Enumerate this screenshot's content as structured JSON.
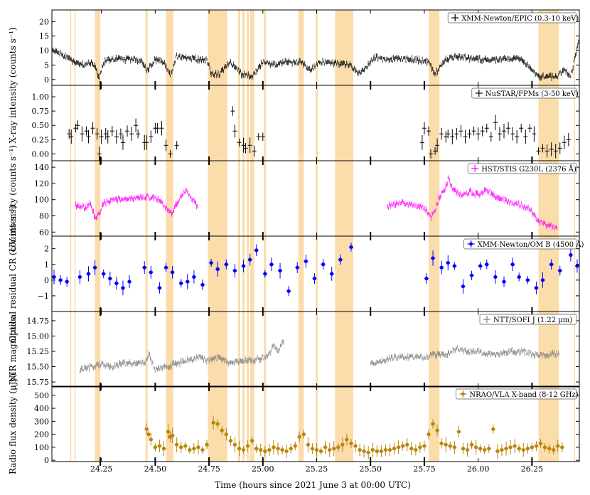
{
  "chart_data": {
    "type": "scatter",
    "xlabel": "Time (hours since 2021 June 3 at 00:00 UTC)",
    "xlim": [
      24.02,
      26.47
    ],
    "x_ticks": [
      "24.25",
      "24.50",
      "24.75",
      "25.00",
      "25.25",
      "25.50",
      "25.75",
      "26.00",
      "26.25"
    ],
    "x_tick_values": [
      24.25,
      24.5,
      24.75,
      25.0,
      25.25,
      25.5,
      25.75,
      26.0,
      26.25
    ],
    "shared_ylabel": "X-ray intensity (counts s⁻¹)",
    "bands": [
      [
        24.105,
        24.11
      ],
      [
        24.125,
        24.13
      ],
      [
        24.22,
        24.245
      ],
      [
        24.455,
        24.465
      ],
      [
        24.55,
        24.585
      ],
      [
        24.745,
        24.835
      ],
      [
        24.885,
        24.895
      ],
      [
        24.905,
        24.915
      ],
      [
        24.925,
        24.935
      ],
      [
        24.94,
        24.96
      ],
      [
        25.005,
        25.015
      ],
      [
        25.165,
        25.19
      ],
      [
        25.245,
        25.255
      ],
      [
        25.335,
        25.42
      ],
      [
        25.77,
        25.82
      ],
      [
        26.28,
        26.375
      ],
      [
        26.445,
        26.45
      ]
    ],
    "event_marks": [
      24.245,
      24.5,
      24.75,
      25.0,
      25.5,
      25.75,
      26.25
    ],
    "band_color": "#fbdcab",
    "panels": [
      {
        "id": "xmm-epic",
        "legend": "XMM-Newton/EPIC (0.3-10 keV)",
        "color": "#000000",
        "style": "dense",
        "ylim": [
          -2,
          24
        ],
        "y_ticks": [
          "0",
          "5",
          "10",
          "15",
          "20"
        ],
        "y_tick_values": [
          0,
          5,
          10,
          15,
          20
        ],
        "x": [
          24.02,
          24.06,
          24.1,
          24.12,
          24.14,
          24.16,
          24.2,
          24.22,
          24.24,
          24.26,
          24.3,
          24.4,
          24.44,
          24.46,
          24.5,
          24.54,
          24.57,
          24.6,
          24.7,
          24.74,
          24.76,
          24.8,
          24.85,
          24.9,
          24.95,
          25.0,
          25.05,
          25.1,
          25.18,
          25.22,
          25.26,
          25.3,
          25.4,
          25.45,
          25.5,
          25.52,
          25.55,
          25.6,
          25.7,
          25.77,
          25.8,
          25.85,
          25.9,
          26.0,
          26.1,
          26.2,
          26.28,
          26.32,
          26.37,
          26.4,
          26.43,
          26.47
        ],
        "y": [
          10,
          9,
          7,
          6,
          6,
          5,
          6,
          4,
          1,
          6,
          7,
          7,
          6,
          3,
          7,
          6,
          1,
          8,
          7,
          7,
          2,
          2,
          6,
          2,
          1,
          6,
          5,
          6,
          6,
          3,
          6,
          6,
          5,
          2,
          6,
          8,
          7,
          7,
          7,
          6,
          2,
          7,
          8,
          7,
          7,
          7,
          1,
          1,
          1,
          4,
          1,
          14
        ]
      },
      {
        "id": "nustar",
        "legend": "NuSTAR/FPMs (3-50 keV)",
        "color": "#000000",
        "style": "binned",
        "ylim": [
          -0.12,
          1.2
        ],
        "y_ticks": [
          "0.00",
          "0.25",
          "0.50",
          "0.75",
          "1.00"
        ],
        "y_tick_values": [
          0,
          0.25,
          0.5,
          0.75,
          1.0
        ],
        "x": [
          24.1,
          24.11,
          24.13,
          24.14,
          24.16,
          24.18,
          24.19,
          24.21,
          24.23,
          24.24,
          24.25,
          24.27,
          24.28,
          24.3,
          24.32,
          24.34,
          24.35,
          24.37,
          24.39,
          24.41,
          24.42,
          24.45,
          24.46,
          24.48,
          24.5,
          24.51,
          24.53,
          24.55,
          24.57,
          24.6,
          24.86,
          24.87,
          24.89,
          24.91,
          24.92,
          24.94,
          24.96,
          24.98,
          25.0,
          25.74,
          25.75,
          25.77,
          25.78,
          25.8,
          25.81,
          25.83,
          25.85,
          25.86,
          25.88,
          25.9,
          25.92,
          25.94,
          25.96,
          25.98,
          26.0,
          26.02,
          26.04,
          26.06,
          26.08,
          26.1,
          26.12,
          26.14,
          26.16,
          26.18,
          26.2,
          26.22,
          26.24,
          26.26,
          26.28,
          26.3,
          26.32,
          26.34,
          26.36,
          26.38,
          26.4,
          26.42
        ],
        "y": [
          0.35,
          0.3,
          0.45,
          0.5,
          0.35,
          0.4,
          0.3,
          0.45,
          0.35,
          0.0,
          0.3,
          0.35,
          0.3,
          0.4,
          0.3,
          0.35,
          0.2,
          0.4,
          0.35,
          0.5,
          0.35,
          0.2,
          0.2,
          0.3,
          0.45,
          0.45,
          0.45,
          0.15,
          0.0,
          0.15,
          0.75,
          0.4,
          0.2,
          0.15,
          0.1,
          0.15,
          0.05,
          0.3,
          0.3,
          0.2,
          0.45,
          0.4,
          0.0,
          0.05,
          0.15,
          0.35,
          0.3,
          0.35,
          0.3,
          0.35,
          0.4,
          0.3,
          0.35,
          0.4,
          0.35,
          0.4,
          0.45,
          0.3,
          0.55,
          0.35,
          0.4,
          0.45,
          0.35,
          0.3,
          0.45,
          0.3,
          0.45,
          0.35,
          0.05,
          0.1,
          0.05,
          0.08,
          0.05,
          0.1,
          0.2,
          0.25
        ]
      },
      {
        "id": "hst",
        "legend": "HST/STIS G230L (2376 Å)",
        "color": "#ff00ff",
        "style": "dense",
        "ylim": [
          55,
          148
        ],
        "y_ticks": [
          "60",
          "80",
          "100",
          "120",
          "140"
        ],
        "y_tick_values": [
          60,
          80,
          100,
          120,
          140
        ],
        "ylabel": "UV intensity (counts s⁻¹)",
        "x": [
          24.13,
          24.17,
          24.2,
          24.22,
          24.23,
          24.26,
          24.3,
          24.35,
          24.4,
          24.45,
          24.48,
          24.52,
          24.55,
          24.56,
          24.58,
          24.6,
          24.62,
          24.64,
          24.67,
          24.7,
          25.58,
          25.62,
          25.65,
          25.7,
          25.75,
          25.78,
          25.8,
          25.82,
          25.84,
          25.86,
          25.88,
          25.92,
          25.96,
          26.0,
          26.04,
          26.08,
          26.12,
          26.16,
          26.2,
          26.24,
          26.28,
          26.31,
          26.34,
          26.37
        ],
        "y": [
          93,
          90,
          95,
          80,
          78,
          95,
          100,
          101,
          102,
          104,
          103,
          100,
          90,
          88,
          84,
          96,
          104,
          112,
          100,
          92,
          92,
          95,
          97,
          93,
          90,
          78,
          87,
          103,
          110,
          125,
          115,
          105,
          110,
          106,
          112,
          104,
          100,
          95,
          93,
          88,
          72,
          70,
          68,
          64
        ]
      },
      {
        "id": "xmm-om",
        "legend": "XMM-Newton/OM B (4500 Å)",
        "color": "#0000ff",
        "style": "binned",
        "ylim": [
          -2.0,
          2.8
        ],
        "y_ticks": [
          "−1",
          "0",
          "1",
          "2"
        ],
        "y_tick_values": [
          -1,
          0,
          1,
          2
        ],
        "ylabel": "Optical residual CR (counts s⁻¹)",
        "x": [
          24.03,
          24.06,
          24.09,
          24.15,
          24.19,
          24.22,
          24.26,
          24.29,
          24.32,
          24.35,
          24.38,
          24.45,
          24.48,
          24.52,
          24.55,
          24.58,
          24.62,
          24.65,
          24.68,
          24.72,
          24.76,
          24.79,
          24.83,
          24.87,
          24.91,
          24.94,
          24.97,
          25.01,
          25.04,
          25.08,
          25.12,
          25.16,
          25.2,
          25.24,
          25.28,
          25.32,
          25.36,
          25.41,
          25.76,
          25.79,
          25.83,
          25.86,
          25.89,
          25.93,
          25.97,
          26.01,
          26.04,
          26.08,
          26.12,
          26.16,
          26.19,
          26.23,
          26.27,
          26.3,
          26.34,
          26.38,
          26.43,
          26.46
        ],
        "y": [
          0.2,
          0.0,
          -0.1,
          0.2,
          0.4,
          0.8,
          0.4,
          0.1,
          -0.2,
          -0.5,
          -0.1,
          0.8,
          0.5,
          -0.5,
          0.8,
          0.5,
          -0.2,
          -0.1,
          0.2,
          -0.3,
          1.1,
          0.7,
          1.0,
          0.6,
          0.9,
          1.3,
          1.9,
          0.4,
          1.0,
          0.6,
          -0.7,
          0.8,
          1.2,
          0.1,
          1.0,
          0.4,
          1.3,
          2.1,
          0.1,
          1.4,
          0.8,
          1.1,
          0.9,
          -0.4,
          0.3,
          0.9,
          1.0,
          0.2,
          -0.1,
          1.0,
          0.2,
          0.0,
          -0.5,
          0.0,
          1.0,
          0.6,
          1.6,
          0.9
        ]
      },
      {
        "id": "ntt",
        "legend": "NTT/SOFI J (1.22 μm)",
        "color": "#808080",
        "style": "dense",
        "ylim": [
          15.83,
          14.6
        ],
        "y_ticks": [
          "14.75",
          "15.00",
          "15.25",
          "15.50",
          "15.75"
        ],
        "y_tick_values": [
          14.75,
          15.0,
          15.25,
          15.5,
          15.75
        ],
        "ylabel": "NIR magnitude",
        "x": [
          24.15,
          24.2,
          24.25,
          24.3,
          24.35,
          24.4,
          24.45,
          24.47,
          24.5,
          24.55,
          24.6,
          24.65,
          24.7,
          24.75,
          24.8,
          24.85,
          24.9,
          24.95,
          25.0,
          25.03,
          25.05,
          25.07,
          25.1,
          25.5,
          25.55,
          25.6,
          25.7,
          25.75,
          25.8,
          25.85,
          25.9,
          25.95,
          26.0,
          26.05,
          26.1,
          26.15,
          26.2,
          26.25,
          26.3,
          26.35,
          26.38
        ],
        "y": [
          15.55,
          15.5,
          15.45,
          15.5,
          15.45,
          15.45,
          15.45,
          15.3,
          15.55,
          15.5,
          15.45,
          15.4,
          15.35,
          15.4,
          15.35,
          15.45,
          15.4,
          15.4,
          15.35,
          15.3,
          15.15,
          15.25,
          15.05,
          15.45,
          15.4,
          15.35,
          15.35,
          15.35,
          15.3,
          15.3,
          15.2,
          15.25,
          15.25,
          15.3,
          15.3,
          15.25,
          15.25,
          15.3,
          15.3,
          15.3,
          15.3
        ]
      },
      {
        "id": "vla",
        "legend": "NRAO/VLA X-band (8-12 GHz)",
        "color": "#b8860b",
        "style": "binned",
        "ylim": [
          -10,
          570
        ],
        "y_ticks": [
          "0",
          "100",
          "200",
          "300",
          "400",
          "500"
        ],
        "y_tick_values": [
          0,
          100,
          200,
          300,
          400,
          500
        ],
        "ylabel": "Radio flux density (μJy)",
        "x": [
          24.46,
          24.47,
          24.48,
          24.5,
          24.52,
          24.54,
          24.56,
          24.57,
          24.58,
          24.6,
          24.62,
          24.64,
          24.66,
          24.68,
          24.7,
          24.72,
          24.74,
          24.77,
          24.79,
          24.81,
          24.83,
          24.85,
          24.87,
          24.89,
          24.91,
          24.93,
          24.95,
          24.97,
          24.99,
          25.01,
          25.03,
          25.05,
          25.07,
          25.09,
          25.11,
          25.13,
          25.15,
          25.17,
          25.19,
          25.21,
          25.23,
          25.25,
          25.27,
          25.29,
          25.31,
          25.33,
          25.35,
          25.37,
          25.39,
          25.41,
          25.43,
          25.45,
          25.47,
          25.49,
          25.51,
          25.53,
          25.55,
          25.57,
          25.59,
          25.61,
          25.63,
          25.65,
          25.67,
          25.69,
          25.71,
          25.73,
          25.75,
          25.77,
          25.79,
          25.81,
          25.83,
          25.85,
          25.87,
          25.89,
          25.91,
          25.93,
          25.95,
          25.97,
          25.99,
          26.01,
          26.03,
          26.05,
          26.07,
          26.09,
          26.11,
          26.13,
          26.15,
          26.17,
          26.19,
          26.21,
          26.23,
          26.25,
          26.27,
          26.29,
          26.31,
          26.33,
          26.35,
          26.37,
          26.39
        ],
        "y": [
          240,
          200,
          160,
          100,
          110,
          90,
          220,
          180,
          190,
          120,
          100,
          110,
          80,
          90,
          100,
          80,
          120,
          290,
          280,
          230,
          200,
          150,
          120,
          90,
          80,
          110,
          150,
          90,
          80,
          70,
          80,
          100,
          90,
          80,
          70,
          90,
          110,
          180,
          200,
          120,
          90,
          80,
          70,
          100,
          80,
          90,
          100,
          120,
          160,
          130,
          110,
          80,
          70,
          60,
          80,
          70,
          70,
          80,
          80,
          90,
          100,
          110,
          120,
          90,
          80,
          100,
          110,
          200,
          280,
          230,
          130,
          120,
          110,
          100,
          220,
          90,
          80,
          120,
          100,
          90,
          80,
          90,
          240,
          70,
          80,
          90,
          100,
          110,
          90,
          80,
          90,
          100,
          110,
          130,
          100,
          90,
          80,
          110,
          100
        ]
      }
    ]
  }
}
